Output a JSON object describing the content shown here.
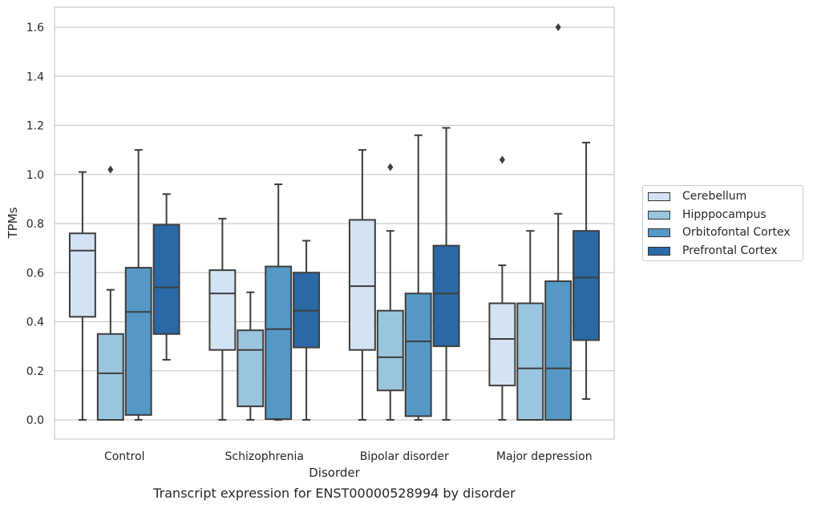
{
  "caption": "Transcript expression for ENST00000528994 by disorder",
  "chart_data": {
    "type": "boxplot",
    "xlabel": "Disorder",
    "ylabel": "TPMs",
    "ylim": [
      -0.08,
      1.68
    ],
    "yticks": [
      "0.0",
      "0.2",
      "0.4",
      "0.6",
      "0.8",
      "1.0",
      "1.2",
      "1.4",
      "1.6"
    ],
    "grid": true,
    "legend_position": "right",
    "categories": [
      "Control",
      "Schizophrenia",
      "Bipolar disorder",
      "Major depression"
    ],
    "series": [
      {
        "name": "Cerebellum",
        "color": "#d4e3f3",
        "boxes": [
          {
            "whislo": 0.0,
            "q1": 0.42,
            "med": 0.69,
            "q3": 0.76,
            "whishi": 1.01,
            "fliers": []
          },
          {
            "whislo": 0.0,
            "q1": 0.285,
            "med": 0.515,
            "q3": 0.61,
            "whishi": 0.82,
            "fliers": []
          },
          {
            "whislo": 0.0,
            "q1": 0.285,
            "med": 0.545,
            "q3": 0.815,
            "whishi": 1.1,
            "fliers": []
          },
          {
            "whislo": 0.0,
            "q1": 0.14,
            "med": 0.33,
            "q3": 0.475,
            "whishi": 0.63,
            "fliers": [
              1.06
            ]
          }
        ]
      },
      {
        "name": "Hipppocampus",
        "color": "#9ac5df",
        "boxes": [
          {
            "whislo": 0.0,
            "q1": 0.0,
            "med": 0.19,
            "q3": 0.35,
            "whishi": 0.53,
            "fliers": [
              1.02
            ]
          },
          {
            "whislo": 0.0,
            "q1": 0.055,
            "med": 0.285,
            "q3": 0.365,
            "whishi": 0.52,
            "fliers": []
          },
          {
            "whislo": 0.0,
            "q1": 0.12,
            "med": 0.255,
            "q3": 0.445,
            "whishi": 0.77,
            "fliers": [
              1.03
            ]
          },
          {
            "whislo": 0.0,
            "q1": 0.0,
            "med": 0.21,
            "q3": 0.475,
            "whishi": 0.77,
            "fliers": []
          }
        ]
      },
      {
        "name": "Orbitofontal Cortex",
        "color": "#5598c6",
        "boxes": [
          {
            "whislo": 0.0,
            "q1": 0.02,
            "med": 0.44,
            "q3": 0.62,
            "whishi": 1.1,
            "fliers": []
          },
          {
            "whislo": 0.0,
            "q1": 0.003,
            "med": 0.37,
            "q3": 0.625,
            "whishi": 0.96,
            "fliers": []
          },
          {
            "whislo": 0.0,
            "q1": 0.015,
            "med": 0.32,
            "q3": 0.515,
            "whishi": 1.16,
            "fliers": []
          },
          {
            "whislo": 0.0,
            "q1": 0.0,
            "med": 0.21,
            "q3": 0.565,
            "whishi": 0.84,
            "fliers": [
              1.6
            ]
          }
        ]
      },
      {
        "name": "Prefrontal Cortex",
        "color": "#2a69a5",
        "boxes": [
          {
            "whislo": 0.245,
            "q1": 0.35,
            "med": 0.54,
            "q3": 0.795,
            "whishi": 0.92,
            "fliers": []
          },
          {
            "whislo": 0.0,
            "q1": 0.295,
            "med": 0.445,
            "q3": 0.6,
            "whishi": 0.73,
            "fliers": []
          },
          {
            "whislo": 0.0,
            "q1": 0.3,
            "med": 0.515,
            "q3": 0.71,
            "whishi": 1.19,
            "fliers": []
          },
          {
            "whislo": 0.085,
            "q1": 0.325,
            "med": 0.58,
            "q3": 0.77,
            "whishi": 1.13,
            "fliers": []
          }
        ]
      }
    ]
  }
}
